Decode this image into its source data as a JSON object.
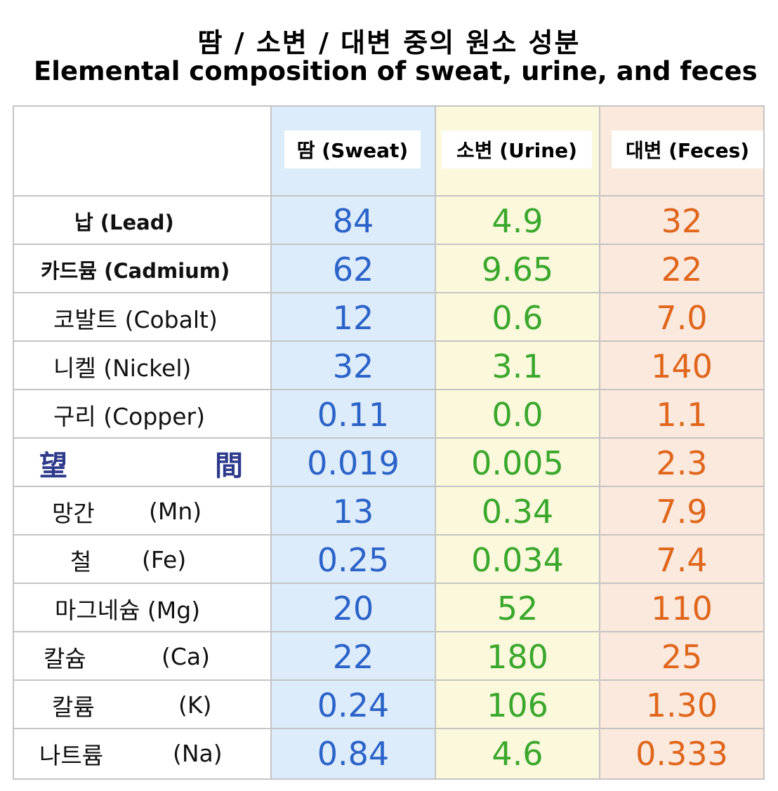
{
  "title": {
    "korean": "땀 / 소변 / 대변 중의 원소 성분",
    "english": "Elemental composition of sweat, urine, and feces"
  },
  "colors": {
    "sweat_text": "#2b63c9",
    "urine_text": "#3aa82d",
    "feces_text": "#e0661c",
    "sweat_bg": "#dcecfb",
    "urine_bg": "#fbf8dc",
    "feces_bg": "#fbe9dd",
    "hanja_text": "#2e3a8c",
    "grid": "#c4c4c4"
  },
  "headers": {
    "sweat": "땀 (Sweat)",
    "urine": "소변 (Urine)",
    "feces": "대변 (Feces)"
  },
  "rows": [
    {
      "name": "납 (Lead)",
      "sweat": "84",
      "urine": "4.9",
      "feces": "32"
    },
    {
      "name": "카드뮴 (Cadmium)",
      "sweat": "62",
      "urine": "9.65",
      "feces": "22"
    },
    {
      "name": "코발트 (Cobalt)",
      "sweat": "12",
      "urine": "0.6",
      "feces": "7.0"
    },
    {
      "name": "니켈 (Nickel)",
      "sweat": "32",
      "urine": "3.1",
      "feces": "140"
    },
    {
      "name": "구리 (Copper)",
      "sweat": "0.11",
      "urine": "0.0",
      "feces": "1.1"
    },
    {
      "name_left": "望",
      "name_right": "間",
      "sweat": "0.019",
      "urine": "0.005",
      "feces": "2.3"
    },
    {
      "name_left": "망간",
      "name_right": "(Mn)",
      "sweat": "13",
      "urine": "0.34",
      "feces": "7.9"
    },
    {
      "name_left": "철",
      "name_right": "(Fe)",
      "sweat": "0.25",
      "urine": "0.034",
      "feces": "7.4"
    },
    {
      "name": "마그네슘 (Mg)",
      "sweat": "20",
      "urine": "52",
      "feces": "110"
    },
    {
      "name_left": "칼슘",
      "name_right": "(Ca)",
      "sweat": "22",
      "urine": "180",
      "feces": "25"
    },
    {
      "name_left": "칼륨",
      "name_right": "(K)",
      "sweat": "0.24",
      "urine": "106",
      "feces": "1.30"
    },
    {
      "name_left": "나트륨",
      "name_right": "(Na)",
      "sweat": "0.84",
      "urine": "4.6",
      "feces": "0.333"
    }
  ]
}
